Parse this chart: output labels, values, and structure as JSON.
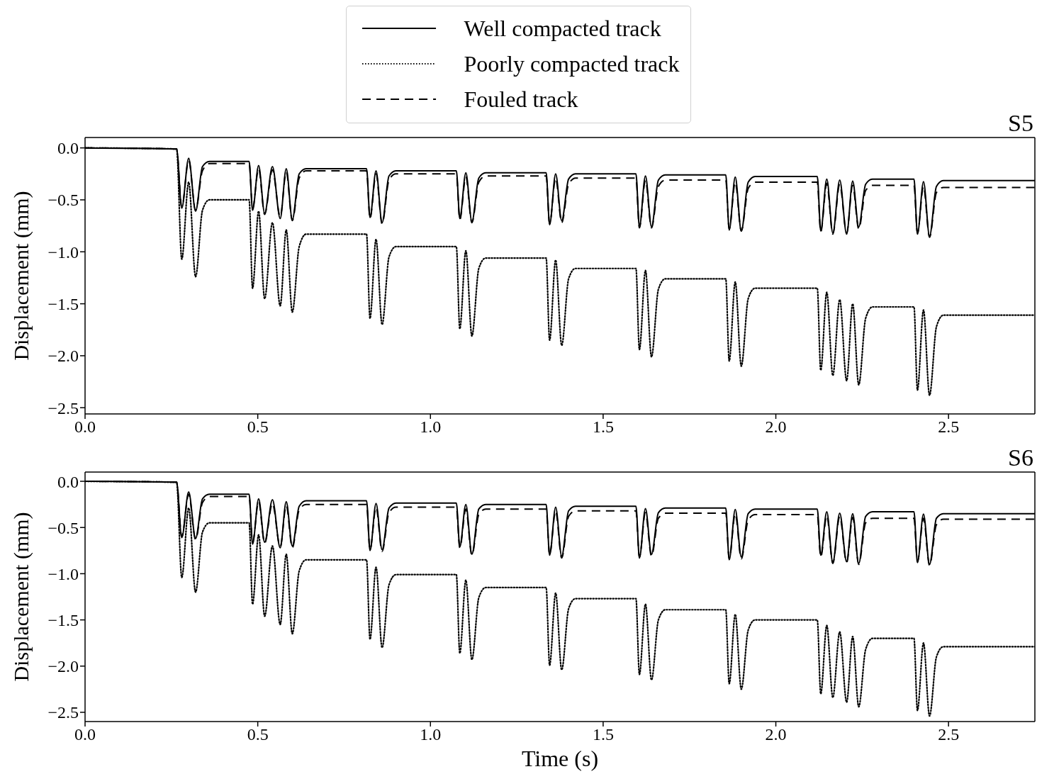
{
  "chart_data": [
    {
      "type": "line",
      "title": "S5",
      "ylabel": "Displacement (mm)",
      "legend": "top",
      "grid": false,
      "marker": "none",
      "xlim": [
        0,
        2.75
      ],
      "ylim": [
        -2.56,
        0.1
      ],
      "xticks": [
        {
          "value": 0,
          "label": "0.0"
        },
        {
          "value": 0.5,
          "label": "0.5"
        },
        {
          "value": 1,
          "label": "1.0"
        },
        {
          "value": 1.5,
          "label": "1.5"
        },
        {
          "value": 2,
          "label": "2.0"
        },
        {
          "value": 2.5,
          "label": "2.5"
        }
      ],
      "yticks": [
        {
          "value": 0,
          "label": "0.0"
        },
        {
          "value": -0.5,
          "label": "−0.5"
        },
        {
          "value": -1,
          "label": "−1.0"
        },
        {
          "value": -1.5,
          "label": "−1.5"
        },
        {
          "value": -2,
          "label": "−2.0"
        },
        {
          "value": -2.5,
          "label": "−2.5"
        }
      ],
      "x": [
        0,
        0.265,
        0.28,
        0.3,
        0.32,
        0.34,
        0.36,
        0.475,
        0.485,
        0.5025,
        0.52,
        0.5425,
        0.565,
        0.5825,
        0.6,
        0.62,
        0.64,
        0.815,
        0.825,
        0.8425,
        0.86,
        0.88,
        0.9,
        1.075,
        1.085,
        1.1025,
        1.12,
        1.14,
        1.16,
        1.335,
        1.345,
        1.3625,
        1.38,
        1.4,
        1.42,
        1.595,
        1.605,
        1.6225,
        1.64,
        1.66,
        1.68,
        1.855,
        1.865,
        1.8825,
        1.9,
        1.92,
        1.94,
        2.12,
        2.13,
        2.1475,
        2.165,
        2.185,
        2.205,
        2.2225,
        2.24,
        2.26,
        2.28,
        2.4,
        2.41,
        2.4275,
        2.445,
        2.465,
        2.485,
        2.75
      ],
      "series": [
        {
          "name": "Well compacted track",
          "color": "#000000",
          "line_style": "solid",
          "values": [
            0,
            -0.01,
            -0.58,
            -0.1,
            -0.61,
            -0.18,
            -0.13,
            -0.13,
            -0.6,
            -0.17,
            -0.63,
            -0.18,
            -0.68,
            -0.2,
            -0.69,
            -0.25,
            -0.2,
            -0.2,
            -0.67,
            -0.22,
            -0.72,
            -0.27,
            -0.22,
            -0.22,
            -0.68,
            -0.24,
            -0.71,
            -0.29,
            -0.24,
            -0.24,
            -0.74,
            -0.25,
            -0.7,
            -0.3,
            -0.25,
            -0.25,
            -0.76,
            -0.27,
            -0.76,
            -0.31,
            -0.26,
            -0.26,
            -0.79,
            -0.28,
            -0.8,
            -0.33,
            -0.275,
            -0.275,
            -0.8,
            -0.3,
            -0.82,
            -0.31,
            -0.83,
            -0.32,
            -0.76,
            -0.35,
            -0.3,
            -0.3,
            -0.83,
            -0.325,
            -0.85,
            -0.37,
            -0.315,
            -0.315
          ]
        },
        {
          "name": "Poorly compacted track",
          "color": "#000000",
          "line_style": "dotted",
          "values": [
            0,
            -0.01,
            -1.07,
            -0.33,
            -1.24,
            -0.6,
            -0.5,
            -0.5,
            -1.35,
            -0.61,
            -1.45,
            -0.72,
            -1.52,
            -0.79,
            -1.58,
            -0.95,
            -0.83,
            -0.83,
            -1.64,
            -0.88,
            -1.7,
            -1.05,
            -0.95,
            -0.95,
            -1.74,
            -0.99,
            -1.81,
            -1.16,
            -1.06,
            -1.06,
            -1.85,
            -1.08,
            -1.9,
            -1.26,
            -1.16,
            -1.16,
            -1.94,
            -1.18,
            -2.01,
            -1.36,
            -1.26,
            -1.26,
            -2.05,
            -1.29,
            -2.1,
            -1.45,
            -1.35,
            -1.35,
            -2.14,
            -1.39,
            -2.19,
            -1.46,
            -2.24,
            -1.5,
            -2.28,
            -1.64,
            -1.53,
            -1.53,
            -2.33,
            -1.56,
            -2.38,
            -1.72,
            -1.61,
            -1.61
          ]
        },
        {
          "name": "Fouled track",
          "color": "#000000",
          "line_style": "dashed",
          "values": [
            0,
            -0.01,
            -0.57,
            -0.12,
            -0.6,
            -0.22,
            -0.15,
            -0.15,
            -0.58,
            -0.2,
            -0.64,
            -0.21,
            -0.66,
            -0.23,
            -0.7,
            -0.29,
            -0.22,
            -0.22,
            -0.68,
            -0.25,
            -0.73,
            -0.31,
            -0.25,
            -0.25,
            -0.69,
            -0.28,
            -0.72,
            -0.33,
            -0.27,
            -0.27,
            -0.73,
            -0.29,
            -0.72,
            -0.35,
            -0.29,
            -0.29,
            -0.77,
            -0.31,
            -0.77,
            -0.37,
            -0.31,
            -0.31,
            -0.78,
            -0.33,
            -0.8,
            -0.39,
            -0.33,
            -0.33,
            -0.81,
            -0.34,
            -0.83,
            -0.35,
            -0.82,
            -0.36,
            -0.78,
            -0.41,
            -0.36,
            -0.36,
            -0.82,
            -0.37,
            -0.86,
            -0.43,
            -0.38,
            -0.38
          ]
        }
      ]
    },
    {
      "type": "line",
      "title": "S6",
      "xlabel": "Time (s)",
      "ylabel": "Displacement (mm)",
      "grid": false,
      "marker": "none",
      "xlim": [
        0,
        2.75
      ],
      "ylim": [
        -2.6,
        0.1
      ],
      "xticks": [
        {
          "value": 0,
          "label": "0.0"
        },
        {
          "value": 0.5,
          "label": "0.5"
        },
        {
          "value": 1,
          "label": "1.0"
        },
        {
          "value": 1.5,
          "label": "1.5"
        },
        {
          "value": 2,
          "label": "2.0"
        },
        {
          "value": 2.5,
          "label": "2.5"
        }
      ],
      "yticks": [
        {
          "value": 0,
          "label": "0.0"
        },
        {
          "value": -0.5,
          "label": "−0.5"
        },
        {
          "value": -1,
          "label": "−1.0"
        },
        {
          "value": -1.5,
          "label": "−1.5"
        },
        {
          "value": -2,
          "label": "−2.0"
        },
        {
          "value": -2.5,
          "label": "−2.5"
        }
      ],
      "x": [
        0,
        0.265,
        0.28,
        0.3,
        0.32,
        0.34,
        0.36,
        0.475,
        0.485,
        0.5025,
        0.52,
        0.5425,
        0.565,
        0.5825,
        0.6,
        0.62,
        0.64,
        0.815,
        0.825,
        0.8425,
        0.86,
        0.88,
        0.9,
        1.075,
        1.085,
        1.1025,
        1.12,
        1.14,
        1.16,
        1.335,
        1.345,
        1.3625,
        1.38,
        1.4,
        1.42,
        1.595,
        1.605,
        1.6225,
        1.64,
        1.66,
        1.68,
        1.855,
        1.865,
        1.8825,
        1.9,
        1.92,
        1.94,
        2.12,
        2.13,
        2.1475,
        2.165,
        2.185,
        2.205,
        2.2225,
        2.24,
        2.26,
        2.28,
        2.4,
        2.41,
        2.4275,
        2.445,
        2.465,
        2.485,
        2.75
      ],
      "series": [
        {
          "color": "#000000",
          "line_style": "solid",
          "values": [
            0,
            -0.01,
            -0.61,
            -0.115,
            -0.62,
            -0.19,
            -0.14,
            -0.14,
            -0.68,
            -0.19,
            -0.66,
            -0.2,
            -0.72,
            -0.22,
            -0.7,
            -0.27,
            -0.21,
            -0.21,
            -0.75,
            -0.24,
            -0.74,
            -0.29,
            -0.235,
            -0.235,
            -0.71,
            -0.25,
            -0.79,
            -0.3,
            -0.25,
            -0.25,
            -0.8,
            -0.28,
            -0.81,
            -0.32,
            -0.27,
            -0.27,
            -0.83,
            -0.295,
            -0.79,
            -0.34,
            -0.29,
            -0.29,
            -0.85,
            -0.305,
            -0.82,
            -0.35,
            -0.3,
            -0.3,
            -0.8,
            -0.33,
            -0.88,
            -0.345,
            -0.87,
            -0.35,
            -0.89,
            -0.38,
            -0.33,
            -0.33,
            -0.88,
            -0.355,
            -0.9,
            -0.4,
            -0.35,
            -0.35
          ]
        },
        {
          "color": "#000000",
          "line_style": "dotted",
          "values": [
            0,
            -0.01,
            -1.04,
            -0.29,
            -1.2,
            -0.55,
            -0.45,
            -0.45,
            -1.33,
            -0.58,
            -1.46,
            -0.7,
            -1.55,
            -0.79,
            -1.65,
            -0.97,
            -0.85,
            -0.85,
            -1.71,
            -0.93,
            -1.8,
            -1.12,
            -1.01,
            -1.01,
            -1.86,
            -1.07,
            -1.93,
            -1.26,
            -1.15,
            -1.15,
            -1.99,
            -1.21,
            -2.04,
            -1.38,
            -1.27,
            -1.27,
            -2.09,
            -1.33,
            -2.15,
            -1.5,
            -1.39,
            -1.39,
            -2.19,
            -1.44,
            -2.25,
            -1.61,
            -1.5,
            -1.5,
            -2.3,
            -1.56,
            -2.34,
            -1.63,
            -2.39,
            -1.68,
            -2.44,
            -1.82,
            -1.7,
            -1.7,
            -2.48,
            -1.75,
            -2.54,
            -1.9,
            -1.79,
            -1.79
          ]
        },
        {
          "color": "#000000",
          "line_style": "dashed",
          "values": [
            0,
            -0.01,
            -0.6,
            -0.14,
            -0.63,
            -0.23,
            -0.165,
            -0.165,
            -0.66,
            -0.22,
            -0.67,
            -0.24,
            -0.71,
            -0.26,
            -0.72,
            -0.31,
            -0.25,
            -0.25,
            -0.74,
            -0.28,
            -0.76,
            -0.34,
            -0.28,
            -0.28,
            -0.72,
            -0.3,
            -0.8,
            -0.36,
            -0.3,
            -0.3,
            -0.79,
            -0.32,
            -0.83,
            -0.38,
            -0.32,
            -0.32,
            -0.82,
            -0.34,
            -0.81,
            -0.4,
            -0.345,
            -0.345,
            -0.84,
            -0.35,
            -0.84,
            -0.42,
            -0.36,
            -0.36,
            -0.82,
            -0.37,
            -0.89,
            -0.38,
            -0.88,
            -0.39,
            -0.9,
            -0.45,
            -0.4,
            -0.4,
            -0.87,
            -0.4,
            -0.91,
            -0.47,
            -0.41,
            -0.41
          ]
        }
      ]
    }
  ]
}
